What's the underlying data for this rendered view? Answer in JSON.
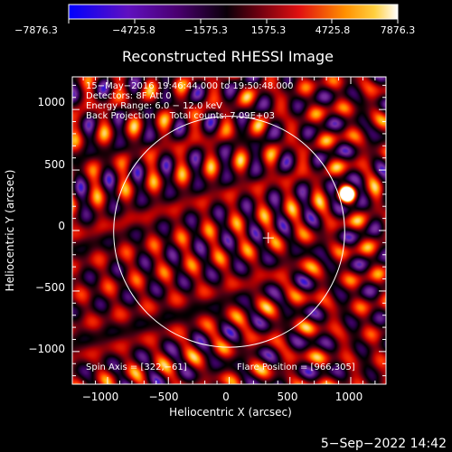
{
  "colorbar": {
    "tick_labels": [
      "−7876.3",
      "−4725.8",
      "−1575.3",
      "1575.3",
      "4725.8",
      "7876.3"
    ]
  },
  "plot": {
    "title": "Reconstructed RHESSI Image",
    "xlabel": "Heliocentric X (arcsec)",
    "ylabel": "Heliocentric Y (arcsec)",
    "x_ticks": [
      "−1000",
      "−500",
      "0",
      "500",
      "1000"
    ],
    "y_ticks": [
      "1000",
      "500",
      "0",
      "−500",
      "−1000"
    ],
    "info_lines": [
      "15−May−2016 19:46:44.000 to 19:50:48.000",
      "Detectors: 8F  Att 0",
      "Energy Range: 6.0 − 12.0 keV",
      "Back Projection     Total counts: 7.09E+03"
    ],
    "spin_axis": "Spin Axis = [322,−61]",
    "flare_position": "Flare Position = [966,305]"
  },
  "footer": {
    "timestamp": "5−Sep−2022 14:42"
  },
  "image_params": {
    "x_range": [
      -1290,
      1290
    ],
    "y_range": [
      -1270,
      1270
    ],
    "solar_disk_radius": 950,
    "disk_center": [
      0,
      -10
    ],
    "spin_axis": [
      322,
      -61
    ],
    "flare_position": [
      966,
      305
    ],
    "fringe_period_arcsec": 230,
    "colormap": [
      "#ffffff",
      "#ffb000",
      "#ff3000",
      "#c00000",
      "#500014",
      "#000000",
      "#3a0060",
      "#7a30a0",
      "#0000ff"
    ]
  }
}
